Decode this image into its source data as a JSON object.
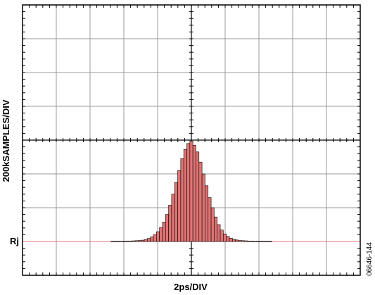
{
  "chart_data": {
    "type": "bar",
    "xlabel": "2ps/DIV",
    "ylabel": "200kSAMPLES/DIV",
    "reference_label": "Rj",
    "figure_code": "06646-144",
    "x_units_per_div": 2,
    "y_units_per_div": 200,
    "x_divisions": 10,
    "y_divisions": 8,
    "grid": true,
    "colors": {
      "grid": "#999999",
      "frame": "#000000",
      "bar_fill": "#e07373",
      "bar_edge": "#000000",
      "reference_line": "#e07373"
    },
    "histogram": {
      "bin_width": 0.18,
      "x": [
        -4.68,
        -4.5,
        -4.32,
        -4.14,
        -3.96,
        -3.78,
        -3.6,
        -3.42,
        -3.24,
        -3.06,
        -2.88,
        -2.7,
        -2.52,
        -2.34,
        -2.16,
        -1.98,
        -1.8,
        -1.62,
        -1.44,
        -1.26,
        -1.08,
        -0.9,
        -0.72,
        -0.54,
        -0.36,
        -0.18,
        0.0,
        0.18,
        0.36,
        0.54,
        0.72,
        0.9,
        1.08,
        1.26,
        1.44,
        1.62,
        1.8,
        1.98,
        2.16,
        2.34,
        2.52,
        2.7,
        2.88,
        3.06,
        3.24,
        3.42,
        3.6,
        3.78,
        3.96,
        4.14,
        4.32,
        4.5,
        4.68
      ],
      "values": [
        2,
        2,
        2,
        2,
        2,
        3,
        3,
        4,
        5,
        6,
        8,
        12,
        18,
        27,
        40,
        58,
        83,
        115,
        160,
        215,
        280,
        350,
        420,
        490,
        545,
        580,
        595,
        570,
        530,
        470,
        400,
        330,
        260,
        200,
        145,
        100,
        68,
        45,
        30,
        20,
        13,
        9,
        6,
        5,
        4,
        3,
        3,
        2,
        2,
        2,
        2,
        2,
        2
      ]
    }
  }
}
